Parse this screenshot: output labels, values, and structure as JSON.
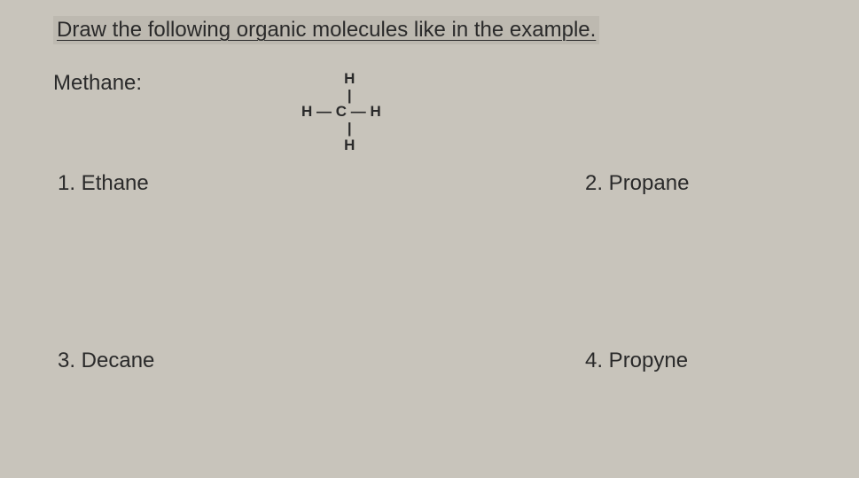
{
  "title": "Draw the following organic molecules like in the example.",
  "example": {
    "label": "Methane:",
    "structure": "    H\n    |\nH — C — H\n    |\n    H"
  },
  "problems": {
    "p1": "1.  Ethane",
    "p2": "2.  Propane",
    "p3": "3.  Decane",
    "p4": "4.  Propyne"
  },
  "colors": {
    "background": "#c8c4bb",
    "text": "#2a2a2a",
    "highlight": "#bdb9b0"
  },
  "fonts": {
    "body_size": 24,
    "molecule_size": 17,
    "family": "Arial"
  }
}
